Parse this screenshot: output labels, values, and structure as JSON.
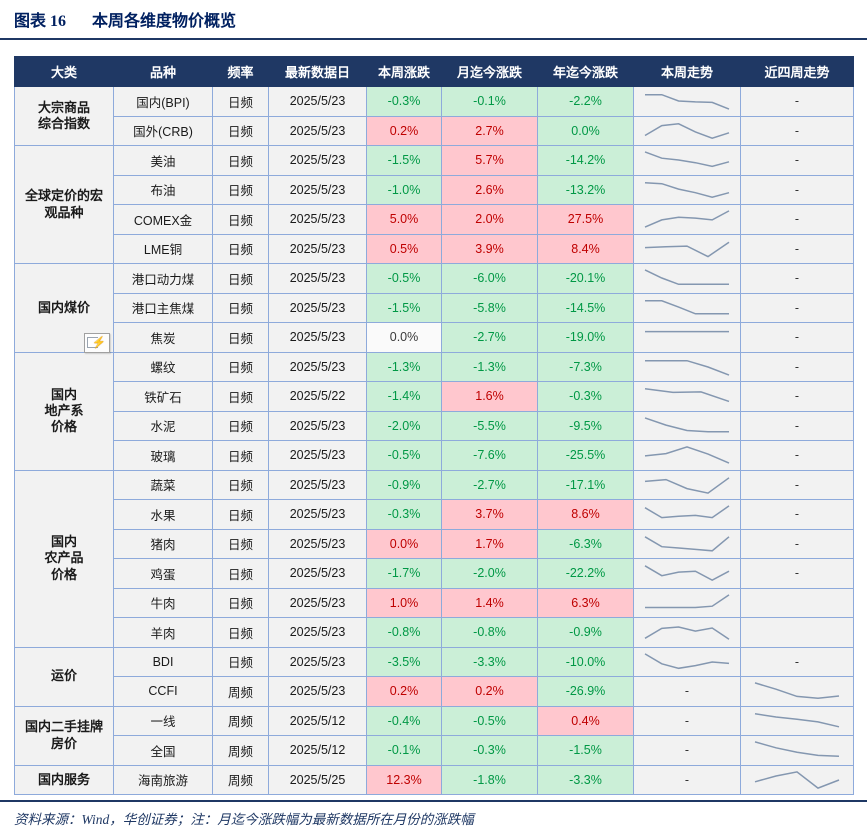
{
  "title": {
    "fig_label": "图表 16",
    "text": "本周各维度物价概览"
  },
  "footer": {
    "source_note": "资料来源：Wind，华创证券；注：月迄今涨跌幅为最新数据所在月份的涨跌幅"
  },
  "colors": {
    "header_bg": "#1F3864",
    "header_text": "#FFFFFF",
    "down_bg": "#CBEFD7",
    "down_text": "#009845",
    "up_bg": "#FFC7CE",
    "up_text": "#BF0000",
    "flat_bg": "#FAFAFA",
    "neutral_bg": "#F2F2F2",
    "grid_border": "#8EAADB",
    "spark_line": "#8497B0",
    "title_text": "#002060"
  },
  "icon": {
    "paste_options_glyph": "⚡"
  },
  "table": {
    "headers": [
      "大类",
      "品种",
      "频率",
      "最新数据日",
      "本周涨跌",
      "月迄今涨跌",
      "年迄今涨跌",
      "本周走势",
      "近四周走势"
    ],
    "rows": [
      {
        "category": {
          "label": "大宗商品\n综合指数",
          "span": 2
        },
        "name": "国内(BPI)",
        "freq": "日频",
        "date": "2025/5/23",
        "week": {
          "v": "-0.3%",
          "t": "down"
        },
        "mtd": {
          "v": "-0.1%",
          "t": "down"
        },
        "ytd": {
          "v": "-2.2%",
          "t": "down"
        },
        "week_trend": [
          0.85,
          0.85,
          0.5,
          0.45,
          0.42,
          0.05
        ],
        "four_week_trend": "-"
      },
      {
        "name": "国外(CRB)",
        "freq": "日频",
        "date": "2025/5/23",
        "week": {
          "v": "0.2%",
          "t": "up"
        },
        "mtd": {
          "v": "2.7%",
          "t": "up"
        },
        "ytd": {
          "v": "0.0%",
          "t": "down"
        },
        "week_trend": [
          0.25,
          0.8,
          0.9,
          0.45,
          0.1,
          0.4
        ],
        "four_week_trend": "-"
      },
      {
        "category": {
          "label": "全球定价的宏\n观品种",
          "span": 4
        },
        "name": "美油",
        "freq": "日频",
        "date": "2025/5/23",
        "week": {
          "v": "-1.5%",
          "t": "down"
        },
        "mtd": {
          "v": "5.7%",
          "t": "up"
        },
        "ytd": {
          "v": "-14.2%",
          "t": "down"
        },
        "week_trend": [
          0.95,
          0.6,
          0.5,
          0.35,
          0.15,
          0.4
        ],
        "four_week_trend": "-"
      },
      {
        "name": "布油",
        "freq": "日频",
        "date": "2025/5/23",
        "week": {
          "v": "-1.0%",
          "t": "down"
        },
        "mtd": {
          "v": "2.6%",
          "t": "up"
        },
        "ytd": {
          "v": "-13.2%",
          "t": "down"
        },
        "week_trend": [
          0.9,
          0.85,
          0.55,
          0.35,
          0.1,
          0.35
        ],
        "four_week_trend": "-"
      },
      {
        "name": "COMEX金",
        "freq": "日频",
        "date": "2025/5/23",
        "week": {
          "v": "5.0%",
          "t": "up"
        },
        "mtd": {
          "v": "2.0%",
          "t": "up"
        },
        "ytd": {
          "v": "27.5%",
          "t": "up"
        },
        "week_trend": [
          0.05,
          0.45,
          0.6,
          0.55,
          0.45,
          0.95
        ],
        "four_week_trend": "-"
      },
      {
        "name": "LME铜",
        "freq": "日频",
        "date": "2025/5/23",
        "week": {
          "v": "0.5%",
          "t": "up"
        },
        "mtd": {
          "v": "3.9%",
          "t": "up"
        },
        "ytd": {
          "v": "8.4%",
          "t": "up"
        },
        "week_trend": [
          0.58,
          0.62,
          0.66,
          0.08,
          0.88
        ],
        "four_week_trend": "-"
      },
      {
        "category": {
          "label": "国内煤价",
          "span": 3
        },
        "name": "港口动力煤",
        "freq": "日频",
        "date": "2025/5/23",
        "week": {
          "v": "-0.5%",
          "t": "down"
        },
        "mtd": {
          "v": "-6.0%",
          "t": "down"
        },
        "ytd": {
          "v": "-20.1%",
          "t": "down"
        },
        "week_trend": [
          0.95,
          0.5,
          0.15,
          0.15,
          0.15,
          0.15
        ],
        "four_week_trend": "-"
      },
      {
        "name": "港口主焦煤",
        "freq": "日频",
        "date": "2025/5/23",
        "week": {
          "v": "-1.5%",
          "t": "down"
        },
        "mtd": {
          "v": "-5.8%",
          "t": "down"
        },
        "ytd": {
          "v": "-14.5%",
          "t": "down"
        },
        "week_trend": [
          0.9,
          0.9,
          0.55,
          0.18,
          0.18,
          0.18
        ],
        "four_week_trend": "-"
      },
      {
        "name": "焦炭",
        "freq": "日频",
        "date": "2025/5/23",
        "week": {
          "v": "0.0%",
          "t": "flat"
        },
        "mtd": {
          "v": "-2.7%",
          "t": "down"
        },
        "ytd": {
          "v": "-19.0%",
          "t": "down"
        },
        "week_trend": [
          0.8,
          0.8,
          0.8,
          0.8
        ],
        "four_week_trend": "-"
      },
      {
        "category": {
          "label": "国内\n地产系\n价格",
          "span": 4
        },
        "name": "螺纹",
        "freq": "日频",
        "date": "2025/5/23",
        "week": {
          "v": "-1.3%",
          "t": "down"
        },
        "mtd": {
          "v": "-1.3%",
          "t": "down"
        },
        "ytd": {
          "v": "-7.3%",
          "t": "down"
        },
        "week_trend": [
          0.85,
          0.85,
          0.85,
          0.5,
          0.05
        ],
        "four_week_trend": "-"
      },
      {
        "name": "铁矿石",
        "freq": "日频",
        "date": "2025/5/22",
        "week": {
          "v": "-1.4%",
          "t": "down"
        },
        "mtd": {
          "v": "1.6%",
          "t": "up"
        },
        "ytd": {
          "v": "-0.3%",
          "t": "down"
        },
        "week_trend": [
          0.9,
          0.7,
          0.73,
          0.2
        ],
        "four_week_trend": "-"
      },
      {
        "name": "水泥",
        "freq": "日频",
        "date": "2025/5/23",
        "week": {
          "v": "-2.0%",
          "t": "down"
        },
        "mtd": {
          "v": "-5.5%",
          "t": "down"
        },
        "ytd": {
          "v": "-9.5%",
          "t": "down"
        },
        "week_trend": [
          0.95,
          0.55,
          0.25,
          0.18,
          0.18
        ],
        "four_week_trend": "-"
      },
      {
        "name": "玻璃",
        "freq": "日频",
        "date": "2025/5/23",
        "week": {
          "v": "-0.5%",
          "t": "down"
        },
        "mtd": {
          "v": "-7.6%",
          "t": "down"
        },
        "ytd": {
          "v": "-25.5%",
          "t": "down"
        },
        "week_trend": [
          0.45,
          0.58,
          0.95,
          0.55,
          0.05
        ],
        "four_week_trend": "-"
      },
      {
        "category": {
          "label": "国内\n农产品\n价格",
          "span": 6
        },
        "name": "蔬菜",
        "freq": "日频",
        "date": "2025/5/23",
        "week": {
          "v": "-0.9%",
          "t": "down"
        },
        "mtd": {
          "v": "-2.7%",
          "t": "down"
        },
        "ytd": {
          "v": "-17.1%",
          "t": "down"
        },
        "week_trend": [
          0.7,
          0.8,
          0.3,
          0.05,
          0.9
        ],
        "four_week_trend": "-"
      },
      {
        "name": "水果",
        "freq": "日频",
        "date": "2025/5/23",
        "week": {
          "v": "-0.3%",
          "t": "down"
        },
        "mtd": {
          "v": "3.7%",
          "t": "up"
        },
        "ytd": {
          "v": "8.6%",
          "t": "up"
        },
        "week_trend": [
          0.85,
          0.3,
          0.38,
          0.42,
          0.3,
          0.95
        ],
        "four_week_trend": "-"
      },
      {
        "name": "猪肉",
        "freq": "日频",
        "date": "2025/5/23",
        "week": {
          "v": "0.0%",
          "t": "up"
        },
        "mtd": {
          "v": "1.7%",
          "t": "up"
        },
        "ytd": {
          "v": "-6.3%",
          "t": "down"
        },
        "week_trend": [
          0.9,
          0.35,
          0.28,
          0.2,
          0.12,
          0.9
        ],
        "four_week_trend": "-"
      },
      {
        "name": "鸡蛋",
        "freq": "日频",
        "date": "2025/5/23",
        "week": {
          "v": "-1.7%",
          "t": "down"
        },
        "mtd": {
          "v": "-2.0%",
          "t": "down"
        },
        "ytd": {
          "v": "-22.2%",
          "t": "down"
        },
        "week_trend": [
          0.9,
          0.35,
          0.55,
          0.6,
          0.1,
          0.6
        ],
        "four_week_trend": "-"
      },
      {
        "name": "牛肉",
        "freq": "日频",
        "date": "2025/5/23",
        "week": {
          "v": "1.0%",
          "t": "up"
        },
        "mtd": {
          "v": "1.4%",
          "t": "up"
        },
        "ytd": {
          "v": "6.3%",
          "t": "up"
        },
        "week_trend": [
          0.25,
          0.25,
          0.25,
          0.25,
          0.32,
          0.95
        ],
        "four_week_trend": ""
      },
      {
        "name": "羊肉",
        "freq": "日频",
        "date": "2025/5/23",
        "week": {
          "v": "-0.8%",
          "t": "down"
        },
        "mtd": {
          "v": "-0.8%",
          "t": "down"
        },
        "ytd": {
          "v": "-0.9%",
          "t": "down"
        },
        "week_trend": [
          0.15,
          0.7,
          0.78,
          0.55,
          0.72,
          0.1
        ],
        "four_week_trend": ""
      },
      {
        "category": {
          "label": "运价",
          "span": 2
        },
        "name": "BDI",
        "freq": "日频",
        "date": "2025/5/23",
        "week": {
          "v": "-3.5%",
          "t": "down"
        },
        "mtd": {
          "v": "-3.3%",
          "t": "down"
        },
        "ytd": {
          "v": "-10.0%",
          "t": "down"
        },
        "week_trend": [
          0.95,
          0.4,
          0.15,
          0.3,
          0.5,
          0.42
        ],
        "four_week_trend": "-"
      },
      {
        "name": "CCFI",
        "freq": "周频",
        "date": "2025/5/23",
        "week": {
          "v": "0.2%",
          "t": "up"
        },
        "mtd": {
          "v": "0.2%",
          "t": "up"
        },
        "ytd": {
          "v": "-26.9%",
          "t": "down"
        },
        "week_trend": "-",
        "four_week_trend": [
          0.95,
          0.6,
          0.2,
          0.1,
          0.22
        ]
      },
      {
        "category": {
          "label": "国内二手挂牌\n房价",
          "span": 2
        },
        "name": "一线",
        "freq": "周频",
        "date": "2025/5/12",
        "week": {
          "v": "-0.4%",
          "t": "down"
        },
        "mtd": {
          "v": "-0.5%",
          "t": "down"
        },
        "ytd": {
          "v": "0.4%",
          "t": "up"
        },
        "week_trend": "-",
        "four_week_trend": [
          0.9,
          0.72,
          0.6,
          0.45,
          0.18
        ]
      },
      {
        "name": "全国",
        "freq": "周频",
        "date": "2025/5/12",
        "week": {
          "v": "-0.1%",
          "t": "down"
        },
        "mtd": {
          "v": "-0.3%",
          "t": "down"
        },
        "ytd": {
          "v": "-1.5%",
          "t": "down"
        },
        "week_trend": "-",
        "four_week_trend": [
          0.95,
          0.62,
          0.38,
          0.2,
          0.15
        ]
      },
      {
        "category": {
          "label": "国内服务",
          "span": 1
        },
        "name": "海南旅游",
        "freq": "周频",
        "date": "2025/5/25",
        "week": {
          "v": "12.3%",
          "t": "up"
        },
        "mtd": {
          "v": "-1.8%",
          "t": "down"
        },
        "ytd": {
          "v": "-3.3%",
          "t": "down"
        },
        "week_trend": "-",
        "four_week_trend": [
          0.4,
          0.72,
          0.95,
          0.05,
          0.5
        ]
      }
    ]
  }
}
